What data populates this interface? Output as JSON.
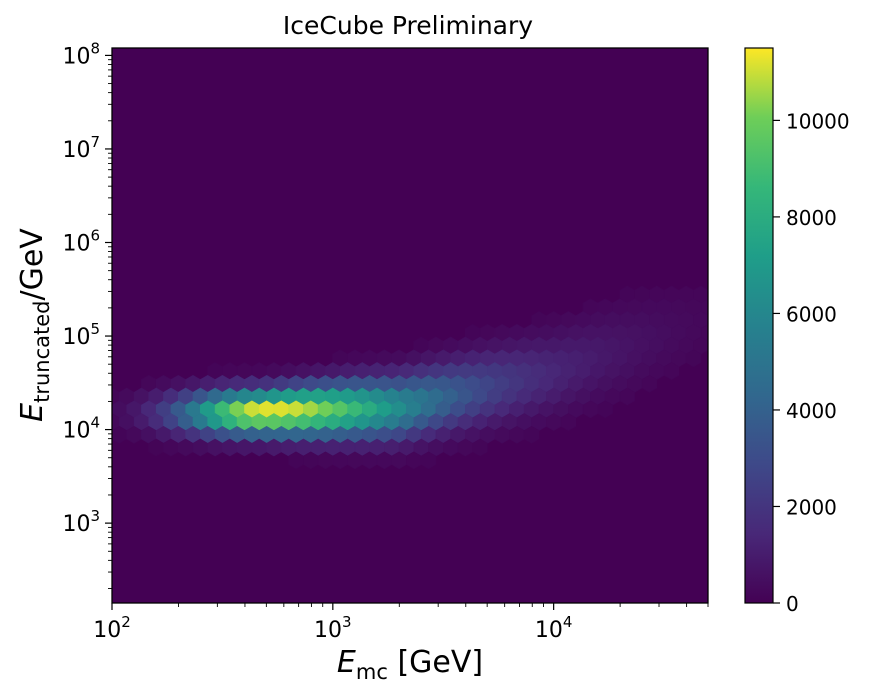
{
  "chart_data": {
    "type": "heatmap",
    "subtype": "hexbin",
    "title": "IceCube Preliminary",
    "title_color": "#ff0000",
    "xlabel": {
      "main": "E",
      "sub": "mc",
      "unit": " [GeV]"
    },
    "ylabel": {
      "main": "E",
      "sub": "truncated",
      "unit": "/GeV"
    },
    "x_scale": "log",
    "y_scale": "log",
    "xlim": [
      100,
      50000
    ],
    "ylim": [
      140,
      120000000
    ],
    "x_ticks": [
      {
        "base": "10",
        "exp": "2",
        "value": 100
      },
      {
        "base": "10",
        "exp": "3",
        "value": 1000
      },
      {
        "base": "10",
        "exp": "4",
        "value": 10000
      }
    ],
    "y_ticks": [
      {
        "base": "10",
        "exp": "3",
        "value": 1000
      },
      {
        "base": "10",
        "exp": "4",
        "value": 10000
      },
      {
        "base": "10",
        "exp": "5",
        "value": 100000
      },
      {
        "base": "10",
        "exp": "6",
        "value": 1000000
      },
      {
        "base": "10",
        "exp": "7",
        "value": 10000000
      },
      {
        "base": "10",
        "exp": "8",
        "value": 100000000
      }
    ],
    "colormap": "viridis",
    "colorbar": {
      "range": [
        0,
        11500
      ],
      "ticks": [
        {
          "label": "0",
          "value": 0
        },
        {
          "label": "2000",
          "value": 2000
        },
        {
          "label": "4000",
          "value": 4000
        },
        {
          "label": "6000",
          "value": 6000
        },
        {
          "label": "8000",
          "value": 8000
        },
        {
          "label": "10000",
          "value": 10000
        }
      ]
    },
    "peak": {
      "x": 470,
      "y": 15000,
      "count": 11500
    },
    "density_ridge": [
      {
        "x": 150,
        "y": 15000
      },
      {
        "x": 470,
        "y": 15000
      },
      {
        "x": 2000,
        "y": 17000
      },
      {
        "x": 10000,
        "y": 40000
      },
      {
        "x": 50000,
        "y": 150000
      }
    ],
    "grid": false
  }
}
